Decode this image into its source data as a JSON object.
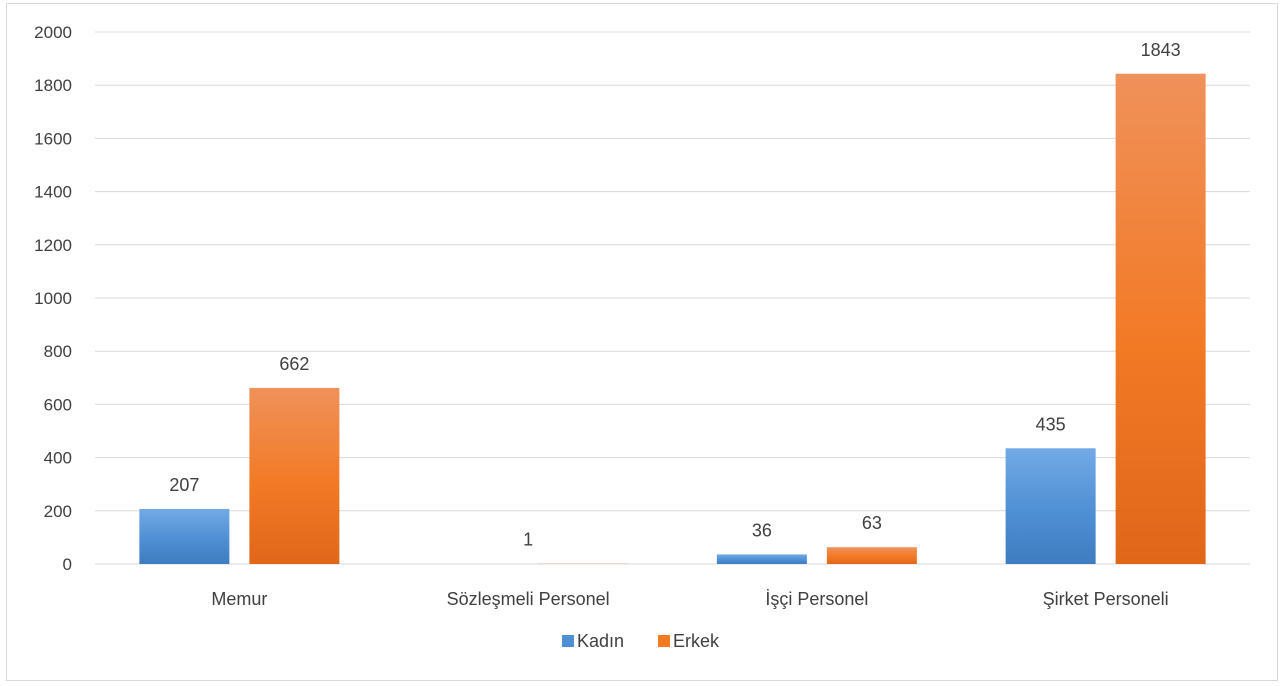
{
  "chart_data": {
    "type": "bar",
    "categories": [
      "Memur",
      "Sözleşmeli Personel",
      "İşçi Personel",
      "Şirket Personeli"
    ],
    "series": [
      {
        "name": "Kadın",
        "values": [
          207,
          null,
          36,
          435
        ],
        "labels": [
          "207",
          "",
          "36",
          "435"
        ],
        "color": "#4f8fd4",
        "color_light": "#72aae6",
        "color_dark": "#3f7cc0"
      },
      {
        "name": "Erkek",
        "values": [
          662,
          1,
          63,
          1843
        ],
        "labels": [
          "662",
          "1",
          "63",
          "1843"
        ],
        "color": "#f27a25",
        "color_light": "#f0915a",
        "color_dark": "#e0661a"
      }
    ],
    "ylim": [
      0,
      2000
    ],
    "yticks": [
      0,
      200,
      400,
      600,
      800,
      1000,
      1200,
      1400,
      1600,
      1800,
      2000
    ],
    "grid": true,
    "legend_position": "bottom",
    "title": "",
    "xlabel": "",
    "ylabel": "",
    "gridline_color": "#d9d9d9",
    "text_color": "#404040"
  }
}
